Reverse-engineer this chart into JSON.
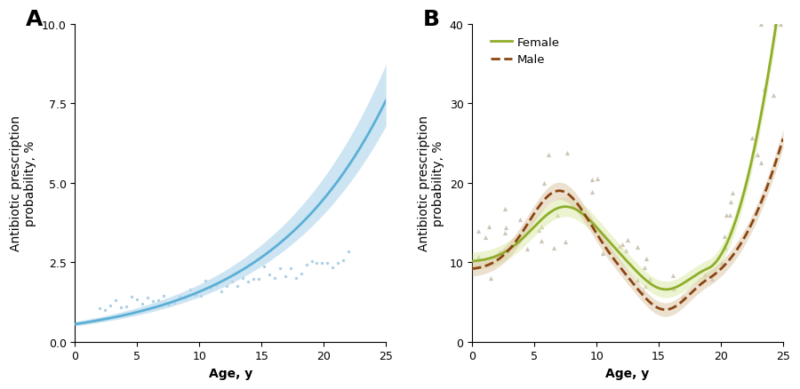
{
  "panel_A_label": "A",
  "panel_B_label": "B",
  "xlabel": "Age, y",
  "ylabel": "Antibiotic prescription\nprobability, %",
  "panel_A_xlim": [
    0,
    25
  ],
  "panel_A_ylim": [
    0,
    10
  ],
  "panel_A_yticks": [
    0,
    2.5,
    5.0,
    7.5,
    10
  ],
  "panel_A_xticks": [
    0,
    5,
    10,
    15,
    20,
    25
  ],
  "panel_B_xlim": [
    0,
    25
  ],
  "panel_B_ylim": [
    0,
    40
  ],
  "panel_B_yticks": [
    0,
    10,
    20,
    30,
    40
  ],
  "panel_B_xticks": [
    0,
    5,
    10,
    15,
    20,
    25
  ],
  "line_color_A": "#5bafd6",
  "ci_color_A": "#b8d9ed",
  "dot_color_A": "#a0c8e0",
  "line_color_female": "#8fad2b",
  "line_color_male": "#8B4513",
  "ci_color_female": "#ddeaaa",
  "ci_color_male": "#ddc8a8",
  "dot_color_B": "#c8c0b0",
  "legend_female": "Female",
  "legend_male": "Male",
  "background_color": "#ffffff",
  "label_fontsize": 10,
  "tick_fontsize": 9,
  "panel_label_fontsize": 18
}
